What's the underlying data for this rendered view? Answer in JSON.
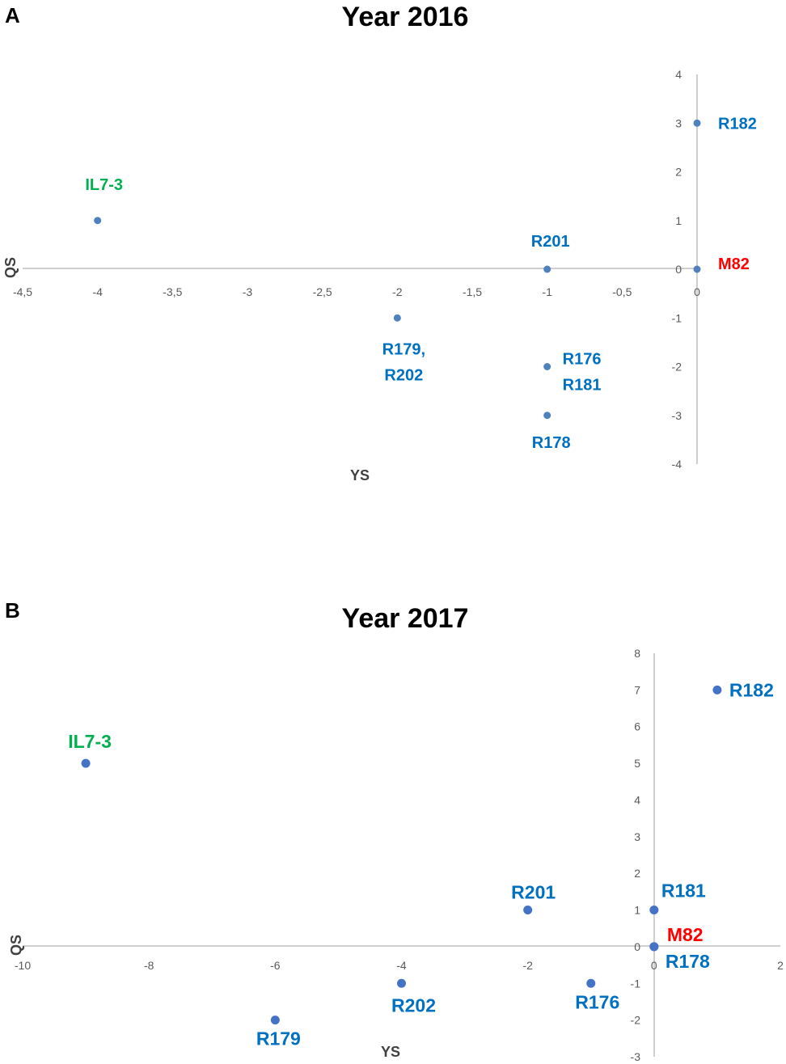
{
  "chart_data": [
    {
      "panel": "A",
      "type": "scatter",
      "title": "Year 2016",
      "xlabel": "YS",
      "ylabel": "QS",
      "xlim": [
        -4.5,
        0
      ],
      "ylim": [
        -4,
        4
      ],
      "xticks": [
        "-4,5",
        "-4",
        "-3,5",
        "-3",
        "-2,5",
        "-2",
        "-1,5",
        "-1",
        "-0,5",
        "0"
      ],
      "yticks": [
        "4",
        "3",
        "2",
        "1",
        "0",
        "-1",
        "-2",
        "-3",
        "-4"
      ],
      "grid": false,
      "marker_color": "#4f81bd",
      "points": [
        {
          "x": -4,
          "y": 1,
          "label": [
            "IL7-3"
          ],
          "color": "#00b050"
        },
        {
          "x": 0,
          "y": 3,
          "label": [
            "R182"
          ],
          "color": "#0070c0"
        },
        {
          "x": -1,
          "y": 0,
          "label": [
            "R201"
          ],
          "color": "#0070c0"
        },
        {
          "x": 0,
          "y": 0,
          "label": [
            "M82"
          ],
          "color": "#ff0000"
        },
        {
          "x": -2,
          "y": -1,
          "label": [
            "R179,",
            "R202"
          ],
          "color": "#0070c0"
        },
        {
          "x": -1,
          "y": -2,
          "label": [
            "R176",
            "R181"
          ],
          "color": "#0070c0"
        },
        {
          "x": -1,
          "y": -3,
          "label": [
            "R178"
          ],
          "color": "#0070c0"
        }
      ]
    },
    {
      "panel": "B",
      "type": "scatter",
      "title": "Year 2017",
      "xlabel": "YS",
      "ylabel": "QS",
      "xlim": [
        -10,
        2
      ],
      "ylim": [
        -3,
        8
      ],
      "xticks": [
        "-10",
        "-8",
        "-6",
        "-4",
        "-2",
        "0",
        "2"
      ],
      "yticks": [
        "8",
        "7",
        "6",
        "5",
        "4",
        "3",
        "2",
        "1",
        "0",
        "-1",
        "-2",
        "-3"
      ],
      "grid": false,
      "marker_color": "#4472c4",
      "points": [
        {
          "x": -9,
          "y": 5,
          "label": [
            "IL7-3"
          ],
          "color": "#00b050"
        },
        {
          "x": 1,
          "y": 7,
          "label": [
            "R182"
          ],
          "color": "#0070c0"
        },
        {
          "x": -2,
          "y": 1,
          "label": [
            "R201"
          ],
          "color": "#0070c0"
        },
        {
          "x": 0,
          "y": 1,
          "label": [
            "R181"
          ],
          "color": "#0070c0"
        },
        {
          "x": 0,
          "y": 0,
          "label": [
            "M82"
          ],
          "color": "#ff0000"
        },
        {
          "x": 0,
          "y": 0,
          "label": [
            "R178"
          ],
          "color": "#0070c0"
        },
        {
          "x": -4,
          "y": -1,
          "label": [
            "R202"
          ],
          "color": "#0070c0"
        },
        {
          "x": -1,
          "y": -1,
          "label": [
            "R176"
          ],
          "color": "#0070c0"
        },
        {
          "x": -6,
          "y": -2,
          "label": [
            "R179"
          ],
          "color": "#0070c0"
        }
      ]
    }
  ]
}
